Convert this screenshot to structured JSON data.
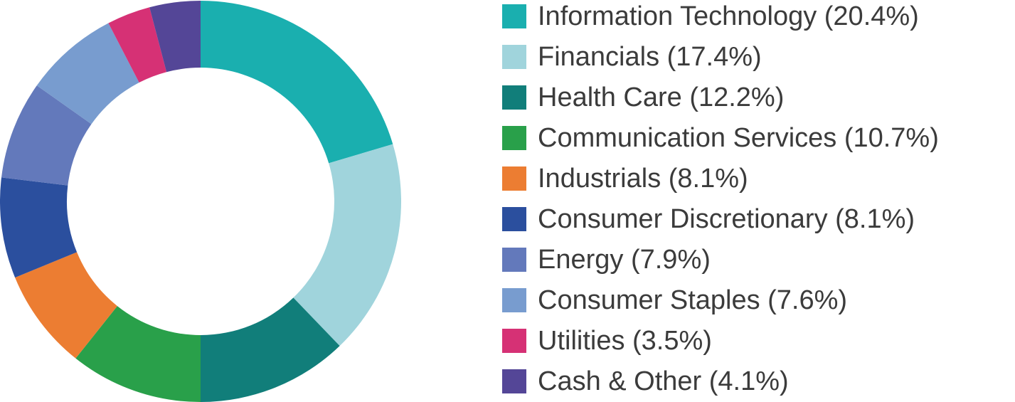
{
  "chart_data": {
    "type": "pie",
    "donut": true,
    "legend_position": "right",
    "slices": [
      {
        "label": "Information Technology (20.4%)",
        "value": 20.4,
        "color": "#1aafaf"
      },
      {
        "label": "Financials (17.4%)",
        "value": 17.4,
        "color": "#a0d4dc"
      },
      {
        "label": "Health Care (12.2%)",
        "value": 12.2,
        "color": "#117e7a"
      },
      {
        "label": "Communication Services (10.7%)",
        "value": 10.7,
        "color": "#29a04a"
      },
      {
        "label": "Industrials (8.1%)",
        "value": 8.1,
        "color": "#ec7d32"
      },
      {
        "label": "Consumer Discretionary (8.1%)",
        "value": 8.1,
        "color": "#2b4f9e"
      },
      {
        "label": "Energy (7.9%)",
        "value": 7.9,
        "color": "#6379bb"
      },
      {
        "label": "Consumer Staples (7.6%)",
        "value": 7.6,
        "color": "#789ccf"
      },
      {
        "label": "Utilities (3.5%)",
        "value": 3.5,
        "color": "#d63175"
      },
      {
        "label": "Cash & Other (4.1%)",
        "value": 4.1,
        "color": "#544697"
      }
    ]
  }
}
